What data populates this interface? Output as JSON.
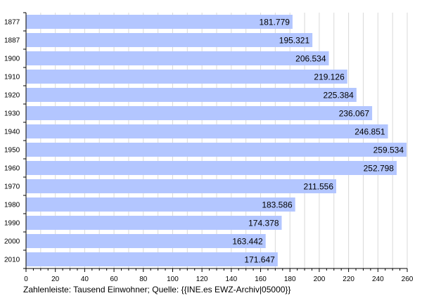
{
  "chart_data": {
    "type": "bar",
    "orientation": "horizontal",
    "categories": [
      "1877",
      "1887",
      "1900",
      "1910",
      "1920",
      "1930",
      "1940",
      "1950",
      "1960",
      "1970",
      "1980",
      "1990",
      "2000",
      "2010"
    ],
    "values": [
      181.779,
      195.321,
      206.534,
      219.126,
      225.384,
      236.067,
      246.851,
      259.534,
      252.798,
      211.556,
      183.586,
      174.378,
      163.442,
      171.647
    ],
    "value_labels": [
      "181.779",
      "195.321",
      "206.534",
      "219.126",
      "225.384",
      "236.067",
      "246.851",
      "259.534",
      "252.798",
      "211.556",
      "183.586",
      "174.378",
      "163.442",
      "171.647"
    ],
    "xlim": [
      0,
      260
    ],
    "x_ticks": [
      "0",
      "20",
      "40",
      "60",
      "80",
      "100",
      "120",
      "140",
      "160",
      "180",
      "200",
      "220",
      "240",
      "260"
    ],
    "grid": true,
    "bar_color": "#b3c6ff",
    "grid_color": "#d9d9d9",
    "footnote": "Zahlenleiste: Tausend Einwohner; Quelle: {{INE.es EWZ-Archiv|05000}}"
  }
}
